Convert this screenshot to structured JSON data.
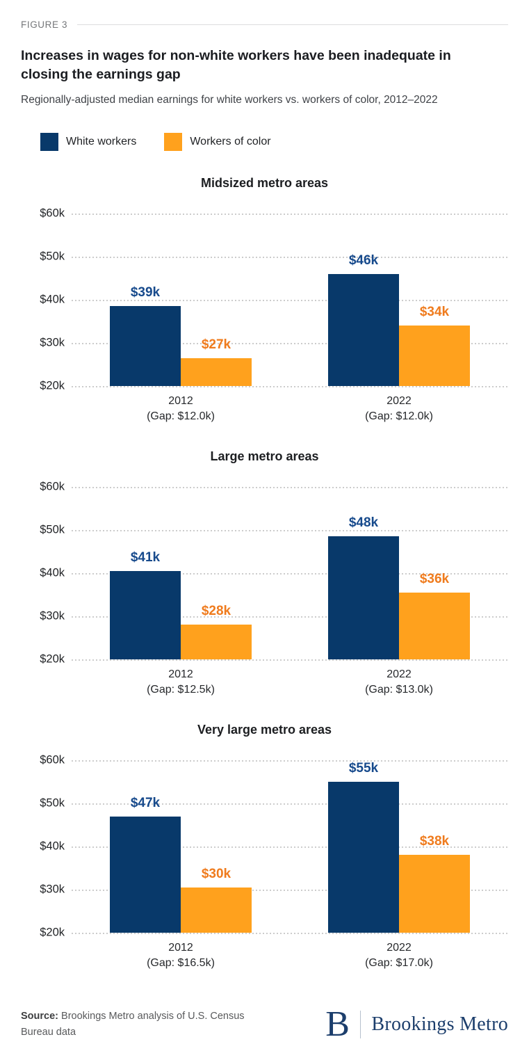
{
  "figure_label": "FIGURE 3",
  "title": "Increases in wages for non-white workers have been inadequate in closing the earnings gap",
  "subtitle": "Regionally-adjusted median earnings for white workers vs. workers of color, 2012–2022",
  "legend": {
    "position": "top-left",
    "items": [
      {
        "label": "White workers",
        "color": "#08396a"
      },
      {
        "label": "Workers of color",
        "color": "#ffa11d"
      }
    ]
  },
  "colors": {
    "white_workers_bar": "#08396a",
    "workers_of_color_bar": "#ffa11d",
    "white_workers_value_label": "#174a8c",
    "workers_of_color_value_label": "#ef7b1d",
    "gridline": "#cccccc",
    "brookings_navy": "#1c3e6c"
  },
  "chart_data": [
    {
      "type": "bar",
      "title": "Midsized metro areas",
      "categories": [
        "2012",
        "2022"
      ],
      "category_sublabels": [
        "(Gap: $12.0k)",
        "(Gap: $12.0k)"
      ],
      "series": [
        {
          "name": "White workers",
          "values": [
            38.5,
            46.0
          ],
          "labels": [
            "$39k",
            "$46k"
          ],
          "color": "#08396a",
          "label_color": "#174a8c"
        },
        {
          "name": "Workers of color",
          "values": [
            26.5,
            34.0
          ],
          "labels": [
            "$27k",
            "$34k"
          ],
          "color": "#ffa11d",
          "label_color": "#ef7b1d"
        }
      ],
      "ylabel_ticks": [
        "$60k",
        "$50k",
        "$40k",
        "$30k",
        "$20k"
      ],
      "ylim": [
        20,
        60
      ],
      "grid": "horizontal-dotted",
      "unit": "USD thousands"
    },
    {
      "type": "bar",
      "title": "Large metro areas",
      "categories": [
        "2012",
        "2022"
      ],
      "category_sublabels": [
        "(Gap: $12.5k)",
        "(Gap: $13.0k)"
      ],
      "series": [
        {
          "name": "White workers",
          "values": [
            40.5,
            48.5
          ],
          "labels": [
            "$41k",
            "$48k"
          ],
          "color": "#08396a",
          "label_color": "#174a8c"
        },
        {
          "name": "Workers of color",
          "values": [
            28.0,
            35.5
          ],
          "labels": [
            "$28k",
            "$36k"
          ],
          "color": "#ffa11d",
          "label_color": "#ef7b1d"
        }
      ],
      "ylabel_ticks": [
        "$60k",
        "$50k",
        "$40k",
        "$30k",
        "$20k"
      ],
      "ylim": [
        20,
        60
      ],
      "grid": "horizontal-dotted",
      "unit": "USD thousands"
    },
    {
      "type": "bar",
      "title": "Very large metro areas",
      "categories": [
        "2012",
        "2022"
      ],
      "category_sublabels": [
        "(Gap: $16.5k)",
        "(Gap: $17.0k)"
      ],
      "series": [
        {
          "name": "White workers",
          "values": [
            47.0,
            55.0
          ],
          "labels": [
            "$47k",
            "$55k"
          ],
          "color": "#08396a",
          "label_color": "#174a8c"
        },
        {
          "name": "Workers of color",
          "values": [
            30.5,
            38.0
          ],
          "labels": [
            "$30k",
            "$38k"
          ],
          "color": "#ffa11d",
          "label_color": "#ef7b1d"
        }
      ],
      "ylabel_ticks": [
        "$60k",
        "$50k",
        "$40k",
        "$30k",
        "$20k"
      ],
      "ylim": [
        20,
        60
      ],
      "grid": "horizontal-dotted",
      "unit": "USD thousands"
    }
  ],
  "footer": {
    "source_label": "Source:",
    "source_text": " Brookings Metro analysis of U.S. Census Bureau data",
    "logo_initial": "B",
    "logo_text": "Brookings Metro"
  }
}
